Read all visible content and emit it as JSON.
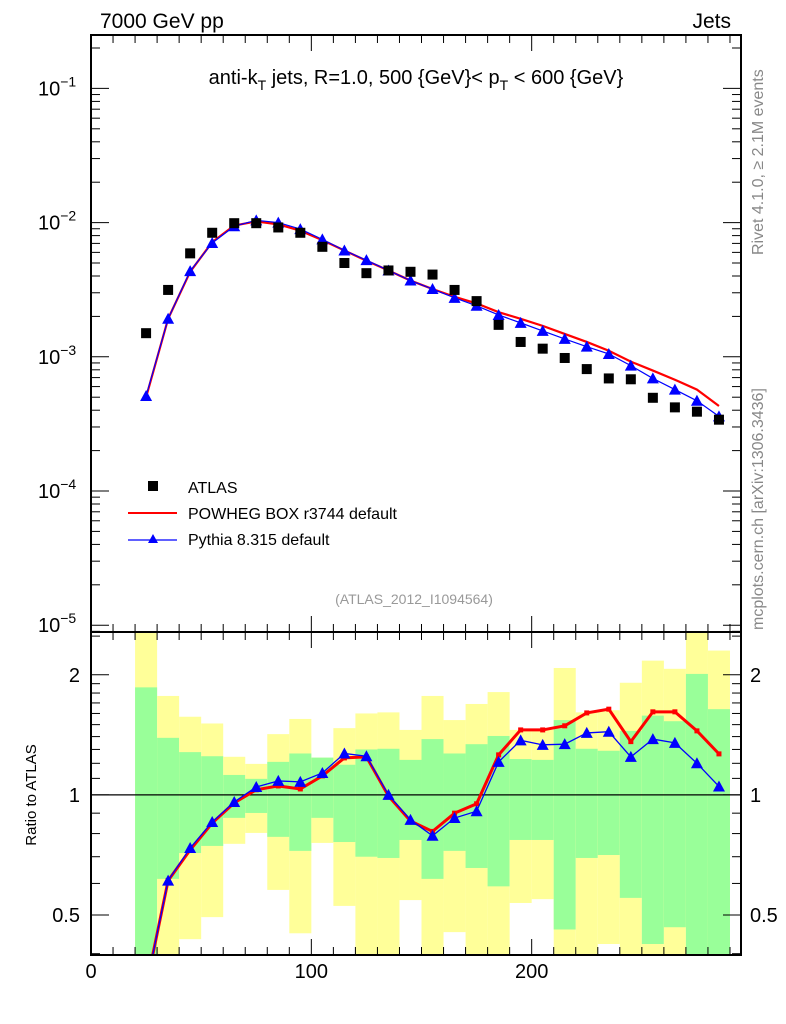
{
  "header": {
    "left": "7000 GeV pp",
    "right": "Jets"
  },
  "side_text": {
    "top": "Rivet 4.1.0, ≥ 2.1M events",
    "bottom": "mcplots.cern.ch [arXiv:1306.3436]"
  },
  "chart_data": [
    {
      "type": "scatter",
      "title": "anti-k_T jets, R=1.0, 500 {GeV}< p_T < 600 {GeV}",
      "title_parts": {
        "a": "anti-k",
        "a_sub": "T",
        "b": " jets, R=1.0, 500 {GeV}< p",
        "b_sub": "T",
        "c": " < 600 {GeV}"
      },
      "watermark": "(ATLAS_2012_I1094564)",
      "yscale": "log",
      "xlim": [
        0,
        295
      ],
      "ylim": [
        8.9e-06,
        0.25
      ],
      "yticks": [
        {
          "base": "10",
          "exp": "−1",
          "v": 0.1
        },
        {
          "base": "10",
          "exp": "−2",
          "v": 0.01
        },
        {
          "base": "10",
          "exp": "−3",
          "v": 0.001
        },
        {
          "base": "10",
          "exp": "−4",
          "v": 0.0001
        },
        {
          "base": "10",
          "exp": "−5",
          "v": 1e-05
        }
      ],
      "legend_position": "bottom-left",
      "x": [
        25,
        35,
        45,
        55,
        65,
        75,
        85,
        95,
        105,
        115,
        125,
        135,
        145,
        155,
        165,
        175,
        185,
        195,
        205,
        215,
        225,
        235,
        245,
        255,
        265,
        275,
        285
      ],
      "series": [
        {
          "name": "ATLAS",
          "color": "#000000",
          "marker": "square",
          "values": [
            0.0015,
            0.00315,
            0.0059,
            0.0084,
            0.0099,
            0.0099,
            0.0092,
            0.0084,
            0.0066,
            0.005,
            0.0042,
            0.0044,
            0.0043,
            0.0041,
            0.00315,
            0.0026,
            0.00173,
            0.00129,
            0.00115,
            0.00098,
            0.00081,
            0.00069,
            0.00068,
            0.000495,
            0.00042,
            0.00039,
            0.00034
          ]
        },
        {
          "name": "POWHEG BOX r3744 default",
          "color": "#ff0000",
          "marker": "line",
          "values": [
            0.0005,
            0.00192,
            0.0043,
            0.00715,
            0.0095,
            0.0102,
            0.0097,
            0.0087,
            0.0074,
            0.0062,
            0.0052,
            0.0044,
            0.0037,
            0.0032,
            0.0028,
            0.0025,
            0.00215,
            0.00192,
            0.0017,
            0.00148,
            0.00129,
            0.00111,
            0.00092,
            0.00079,
            0.000675,
            0.00057,
            0.00043
          ]
        },
        {
          "name": "Pythia 8.315 default",
          "color": "#0000ff",
          "marker": "triangle",
          "values": [
            0.00051,
            0.00192,
            0.00435,
            0.00705,
            0.0094,
            0.0104,
            0.01,
            0.00895,
            0.0075,
            0.0062,
            0.00525,
            0.0044,
            0.0037,
            0.0032,
            0.00275,
            0.0024,
            0.00205,
            0.00179,
            0.00156,
            0.00136,
            0.00119,
            0.00105,
            0.00086,
            0.00069,
            0.00057,
            0.00047,
            0.00036
          ]
        }
      ]
    },
    {
      "type": "line",
      "ylabel": "Ratio to ATLAS",
      "yscale": "log",
      "xlim": [
        0,
        295
      ],
      "ylim": [
        0.397,
        2.56
      ],
      "xticks": [
        0,
        100,
        200
      ],
      "yticks": [
        2,
        1,
        0.5
      ],
      "x": [
        25,
        35,
        45,
        55,
        65,
        75,
        85,
        95,
        105,
        115,
        125,
        135,
        145,
        155,
        165,
        175,
        185,
        195,
        205,
        215,
        225,
        235,
        245,
        255,
        265,
        275,
        285
      ],
      "bin_edges_low": [
        20,
        30,
        40,
        50,
        60,
        70,
        80,
        90,
        100,
        110,
        120,
        130,
        140,
        150,
        160,
        170,
        180,
        190,
        200,
        210,
        220,
        230,
        240,
        250,
        260,
        270,
        280
      ],
      "bands": {
        "yellow_color": "#ffff99",
        "green_color": "#99ff99",
        "yellow_hi": [
          2.6,
          1.77,
          1.57,
          1.51,
          1.246,
          1.196,
          1.42,
          1.55,
          1.24,
          1.47,
          1.6,
          1.61,
          1.455,
          1.77,
          1.54,
          1.69,
          1.81,
          1.455,
          1.455,
          2.08,
          1.61,
          1.63,
          1.91,
          2.17,
          2.07,
          2.6,
          2.3
        ],
        "green_hi": [
          1.86,
          1.39,
          1.28,
          1.25,
          1.122,
          1.097,
          1.21,
          1.27,
          1.24,
          1.19,
          1.3,
          1.305,
          1.224,
          1.38,
          1.27,
          1.34,
          1.405,
          1.23,
          1.224,
          1.54,
          1.305,
          1.29,
          1.447,
          1.58,
          1.53,
          2.01,
          1.64
        ],
        "green_lo": [
          0.39,
          0.616,
          0.715,
          0.745,
          0.876,
          0.901,
          0.785,
          0.724,
          0.876,
          0.762,
          0.7,
          0.695,
          0.771,
          0.616,
          0.724,
          0.656,
          0.59,
          0.771,
          0.771,
          0.46,
          0.695,
          0.707,
          0.552,
          0.423,
          0.466,
          0.39,
          0.39
        ],
        "yellow_lo": [
          0.39,
          0.39,
          0.435,
          0.494,
          0.754,
          0.803,
          0.578,
          0.45,
          0.758,
          0.527,
          0.39,
          0.39,
          0.545,
          0.39,
          0.453,
          0.39,
          0.39,
          0.536,
          0.548,
          0.39,
          0.39,
          0.423,
          0.39,
          0.39,
          0.39,
          0.39,
          0.39
        ]
      },
      "series": [
        {
          "name": "POWHEG BOX r3744 default",
          "color": "#ff0000",
          "values": [
            0.33,
            0.61,
            0.728,
            0.85,
            0.955,
            1.03,
            1.053,
            1.035,
            1.116,
            1.238,
            1.245,
            0.994,
            0.86,
            0.81,
            0.9,
            0.95,
            1.26,
            1.455,
            1.455,
            1.49,
            1.605,
            1.64,
            1.36,
            1.615,
            1.615,
            1.447,
            1.267
          ]
        },
        {
          "name": "Pythia 8.315 default",
          "color": "#0000ff",
          "values": [
            0.33,
            0.61,
            0.736,
            0.855,
            0.96,
            1.047,
            1.084,
            1.078,
            1.135,
            1.27,
            1.25,
            1.0,
            0.866,
            0.79,
            0.875,
            0.91,
            1.21,
            1.37,
            1.335,
            1.34,
            1.43,
            1.44,
            1.245,
            1.38,
            1.35,
            1.2,
            1.05
          ]
        }
      ]
    }
  ]
}
